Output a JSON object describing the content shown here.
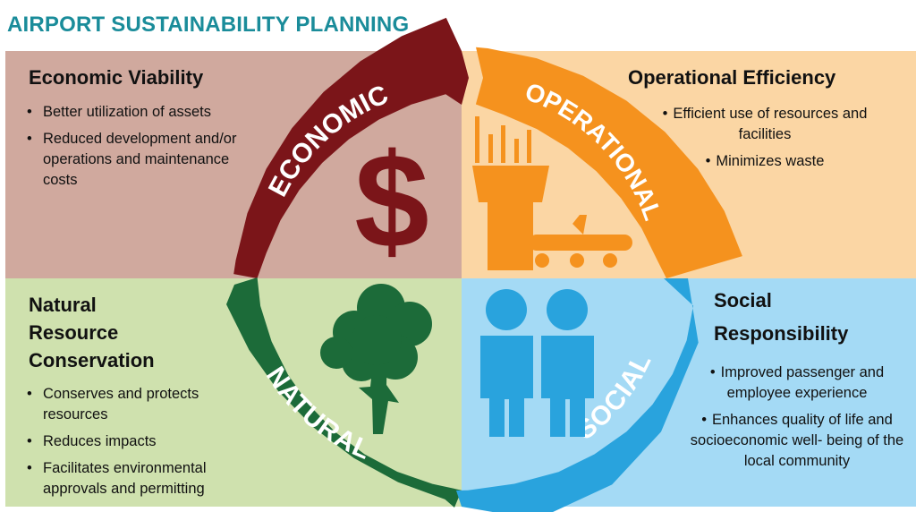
{
  "title": "AIRPORT SUSTAINABILITY PLANNING",
  "colors": {
    "title": "#1a8c9a",
    "economic_bg": "#d0a99e",
    "economic_arc": "#7b1519",
    "operational_bg": "#fbd6a4",
    "operational_arc": "#f5921e",
    "natural_bg": "#cfe1ae",
    "natural_arc": "#1c6b39",
    "social_bg": "#a4daf5",
    "social_arc": "#29a3dd"
  },
  "quadrants": {
    "economic": {
      "heading": "Economic Viability",
      "bullets": [
        "Better utilization of assets",
        "Reduced development and/or operations and maintenance costs"
      ]
    },
    "operational": {
      "heading": "Operational Efficiency",
      "bullets": [
        "Efficient use of resources and facilities",
        "Minimizes waste"
      ]
    },
    "natural": {
      "heading_lines": [
        "Natural",
        "Resource",
        "Conservation"
      ],
      "bullets": [
        "Conserves and protects resources",
        "Reduces impacts",
        "Facilitates environmental approvals and permitting"
      ]
    },
    "social": {
      "heading_lines": [
        "Social",
        "Responsibility"
      ],
      "bullets": [
        "Improved passenger and employee experience",
        "Enhances quality of life and socioeconomic well- being of the local community"
      ]
    }
  },
  "arcs": {
    "economic": "ECONOMIC",
    "operational": "OPERATIONAL",
    "natural": "NATURAL",
    "social": "SOCIAL"
  },
  "icons": {
    "economic": "dollar-sign-icon",
    "operational": "control-tower-airplane-icon",
    "natural": "tree-icon",
    "social": "people-icon"
  }
}
